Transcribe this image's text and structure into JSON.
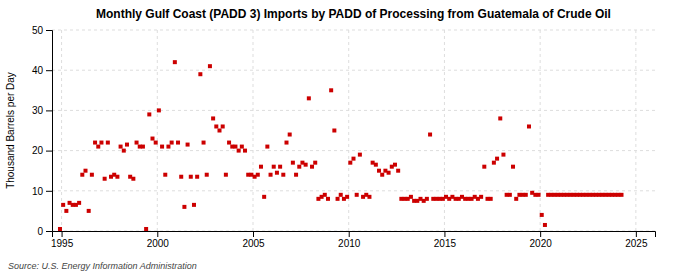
{
  "chart_data": {
    "type": "scatter",
    "title": "Monthly Gulf Coast (PADD 3) Imports by PADD of Processing from Guatemala of Crude Oil",
    "ylabel": "Thousand Barrels per Day",
    "source": "Source: U.S. Energy Information Administration",
    "color": "#cc0000",
    "marker": "square",
    "grid": true,
    "xlim": [
      1994.5,
      2026.0
    ],
    "ylim": [
      0,
      50
    ],
    "xticks": [
      1995,
      2000,
      2005,
      2010,
      2015,
      2020,
      2025
    ],
    "yticks": [
      0,
      10,
      20,
      30,
      40,
      50
    ],
    "x": [
      1994.917,
      1995.083,
      1995.25,
      1995.417,
      1995.583,
      1995.75,
      1995.917,
      1996.083,
      1996.25,
      1996.417,
      1996.583,
      1996.75,
      1996.917,
      1997.083,
      1997.25,
      1997.417,
      1997.583,
      1997.75,
      1997.917,
      1998.083,
      1998.25,
      1998.417,
      1998.583,
      1998.75,
      1998.917,
      1999.083,
      1999.25,
      1999.417,
      1999.583,
      1999.75,
      1999.917,
      2000.083,
      2000.25,
      2000.417,
      2000.583,
      2000.75,
      2000.917,
      2001.083,
      2001.25,
      2001.417,
      2001.583,
      2001.75,
      2001.917,
      2002.083,
      2002.25,
      2002.417,
      2002.583,
      2002.75,
      2002.917,
      2003.083,
      2003.25,
      2003.417,
      2003.583,
      2003.75,
      2003.917,
      2004.083,
      2004.25,
      2004.417,
      2004.583,
      2004.75,
      2004.917,
      2005.083,
      2005.25,
      2005.417,
      2005.583,
      2005.75,
      2005.917,
      2006.083,
      2006.25,
      2006.417,
      2006.583,
      2006.75,
      2006.917,
      2007.083,
      2007.25,
      2007.417,
      2007.583,
      2007.75,
      2007.917,
      2008.083,
      2008.25,
      2008.417,
      2008.583,
      2008.75,
      2008.917,
      2009.083,
      2009.25,
      2009.417,
      2009.583,
      2009.75,
      2009.917,
      2010.083,
      2010.25,
      2010.417,
      2010.583,
      2010.75,
      2010.917,
      2011.083,
      2011.25,
      2011.417,
      2011.583,
      2011.75,
      2011.917,
      2012.083,
      2012.25,
      2012.417,
      2012.583,
      2012.75,
      2012.917,
      2013.083,
      2013.25,
      2013.417,
      2013.583,
      2013.75,
      2013.917,
      2014.083,
      2014.25,
      2014.417,
      2014.583,
      2014.75,
      2014.917,
      2015.083,
      2015.25,
      2015.417,
      2015.583,
      2015.75,
      2015.917,
      2016.083,
      2016.25,
      2016.417,
      2016.583,
      2016.75,
      2016.917,
      2017.083,
      2017.25,
      2017.417,
      2017.583,
      2017.75,
      2017.917,
      2018.083,
      2018.25,
      2018.417,
      2018.583,
      2018.75,
      2018.917,
      2019.083,
      2019.25,
      2019.417,
      2019.583,
      2019.75,
      2019.917,
      2020.083,
      2020.25,
      2020.417,
      2020.583,
      2020.75,
      2020.917,
      2021.083,
      2021.25,
      2021.417,
      2021.583,
      2021.75,
      2021.917,
      2022.083,
      2022.25,
      2022.417,
      2022.583,
      2022.75,
      2022.917,
      2023.083,
      2023.25,
      2023.417,
      2023.583,
      2023.75,
      2023.917,
      2024.083,
      2024.25
    ],
    "values": [
      0.5,
      6.5,
      5.0,
      7.0,
      6.5,
      6.5,
      7.0,
      14.0,
      15.0,
      5.0,
      14.0,
      22.0,
      21.0,
      22.0,
      13.0,
      22.0,
      13.5,
      14.0,
      13.5,
      21.0,
      20.0,
      21.5,
      13.5,
      13.0,
      22.0,
      21.0,
      21.0,
      0.5,
      29.0,
      23.0,
      22.0,
      30.0,
      21.0,
      14.0,
      21.0,
      22.0,
      42.0,
      22.0,
      13.5,
      6.0,
      21.5,
      13.5,
      6.5,
      13.5,
      39.0,
      22.0,
      14.0,
      41.0,
      28.0,
      26.0,
      25.0,
      26.0,
      14.0,
      22.0,
      21.0,
      21.0,
      20.0,
      21.0,
      20.0,
      14.0,
      14.0,
      13.5,
      14.0,
      16.0,
      8.5,
      21.0,
      14.0,
      16.0,
      14.5,
      16.0,
      14.0,
      22.0,
      24.0,
      17.0,
      14.0,
      16.0,
      17.0,
      16.5,
      33.0,
      16.0,
      17.0,
      8.0,
      8.5,
      9.0,
      8.0,
      35.0,
      25.0,
      8.0,
      9.0,
      8.0,
      8.5,
      17.0,
      18.0,
      9.0,
      19.0,
      8.5,
      9.0,
      8.5,
      17.0,
      16.5,
      15.0,
      14.0,
      15.0,
      14.5,
      16.0,
      16.5,
      15.0,
      8.0,
      8.0,
      8.0,
      8.5,
      7.5,
      7.5,
      8.0,
      7.5,
      8.0,
      24.0,
      8.0,
      8.0,
      8.0,
      8.0,
      8.5,
      8.0,
      8.5,
      8.0,
      8.0,
      8.5,
      8.0,
      8.0,
      8.0,
      8.5,
      8.0,
      8.5,
      16.0,
      8.0,
      8.0,
      17.0,
      18.0,
      28.0,
      19.0,
      9.0,
      9.0,
      16.0,
      8.0,
      9.0,
      9.0,
      9.0,
      26.0,
      9.5,
      9.0,
      9.0,
      4.0,
      1.5,
      9.0,
      9.0,
      9.0,
      9.0,
      9.0,
      9.0,
      9.0,
      9.0,
      9.0,
      9.0,
      9.0,
      9.0,
      9.0,
      9.0,
      9.0,
      9.0,
      9.0,
      9.0,
      9.0,
      9.0,
      9.0,
      9.0,
      9.0,
      9.0
    ]
  }
}
